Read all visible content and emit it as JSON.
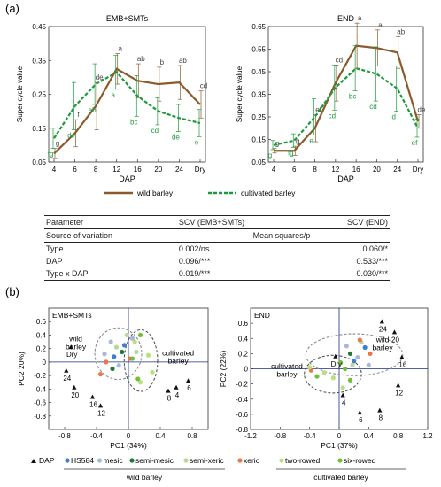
{
  "panel_a": {
    "label": "(a)"
  },
  "panel_b": {
    "label": "(b)"
  },
  "chart_data": [
    {
      "type": "line",
      "title": "EMB+SMTs",
      "xlabel": "DAP",
      "ylabel": "Super cycle value",
      "categories": [
        "4",
        "6",
        "8",
        "12",
        "16",
        "20",
        "24",
        "Dry"
      ],
      "yticks": [
        "0.05",
        "0.15",
        "0.25",
        "0.35",
        "0.45"
      ],
      "ylim": [
        0.05,
        0.45
      ],
      "series": [
        {
          "name": "wild barley",
          "color": "#8b5a2b",
          "values": [
            0.075,
            0.135,
            0.215,
            0.325,
            0.29,
            0.28,
            0.285,
            0.22
          ],
          "errors": [
            0.015,
            0.04,
            0.07,
            0.045,
            0.05,
            0.05,
            0.05,
            0.04
          ],
          "letters": [
            "g",
            "f",
            "de",
            "a",
            "ab",
            "b",
            "ab",
            "cd"
          ]
        },
        {
          "name": "cultivated barley",
          "color": "#1e9a3c",
          "values": [
            0.12,
            0.215,
            0.28,
            0.315,
            0.245,
            0.2,
            0.18,
            0.165
          ],
          "errors": [
            0.03,
            0.07,
            0.06,
            0.05,
            0.06,
            0.04,
            0.04,
            0.04
          ],
          "letters": [
            "fg",
            "de",
            "ab",
            "a",
            "bc",
            "cd",
            "de",
            "e"
          ]
        }
      ],
      "legend": "bottom"
    },
    {
      "type": "line",
      "title": "END",
      "xlabel": "DAP",
      "ylabel": "Super cycle value",
      "categories": [
        "4",
        "6",
        "8",
        "12",
        "16",
        "20",
        "24",
        "Dry"
      ],
      "yticks": [
        "0.05",
        "0.15",
        "0.25",
        "0.35",
        "0.45",
        "0.55",
        "0.65"
      ],
      "ylim": [
        0.05,
        0.65
      ],
      "series": [
        {
          "name": "wild barley",
          "color": "#8b5a2b",
          "values": [
            0.1,
            0.1,
            0.2,
            0.4,
            0.565,
            0.555,
            0.535,
            0.23
          ],
          "errors": [
            0.01,
            0.02,
            0.06,
            0.08,
            0.1,
            0.08,
            0.07,
            0.03
          ],
          "letters": [
            "g",
            "g",
            "ef",
            "cd",
            "a",
            "a",
            "ab",
            "de"
          ]
        },
        {
          "name": "cultivated barley",
          "color": "#1e9a3c",
          "values": [
            0.125,
            0.145,
            0.25,
            0.38,
            0.465,
            0.44,
            0.375,
            0.2
          ],
          "errors": [
            0.02,
            0.03,
            0.08,
            0.1,
            0.1,
            0.12,
            0.1,
            0.04
          ],
          "letters": [
            "g",
            "fg",
            "e",
            "cd",
            "bc",
            "cd",
            "d",
            "ef"
          ]
        }
      ],
      "legend": "bottom"
    },
    {
      "type": "scatter",
      "title": "EMB+SMTs",
      "xlabel": "PC1 (34%)",
      "ylabel": "PC2 20%)",
      "xticks": [
        "-0.8",
        "-0.4",
        "0",
        "0.4",
        "0.8"
      ],
      "yticks": [
        "0.6",
        "0.4",
        "0.2",
        "0",
        "-0.2",
        "-0.4",
        "-0.6",
        "-0.8"
      ],
      "xlim": [
        -1.0,
        1.0
      ],
      "ylim": [
        -1.0,
        0.8
      ],
      "annotations": [
        "wild barley",
        "cultivated barley"
      ],
      "dap_points": [
        {
          "label": "Dry",
          "x": -0.72,
          "y": 0.22
        },
        {
          "label": "24",
          "x": -0.78,
          "y": -0.13
        },
        {
          "label": "20",
          "x": -0.68,
          "y": -0.38
        },
        {
          "label": "16",
          "x": -0.45,
          "y": -0.52
        },
        {
          "label": "12",
          "x": -0.35,
          "y": -0.65
        },
        {
          "label": "8",
          "x": 0.5,
          "y": -0.43
        },
        {
          "label": "4",
          "x": 0.6,
          "y": -0.38
        },
        {
          "label": "6",
          "x": 0.75,
          "y": -0.28
        }
      ],
      "sample_points": [
        {
          "group": "HS584",
          "x": -0.18,
          "y": 0.08
        },
        {
          "group": "HS584",
          "x": -0.05,
          "y": 0.25
        },
        {
          "group": "mesic",
          "x": -0.3,
          "y": 0.12
        },
        {
          "group": "mesic",
          "x": -0.22,
          "y": 0.3
        },
        {
          "group": "mesic",
          "x": 0.05,
          "y": 0.35
        },
        {
          "group": "mesic",
          "x": -0.12,
          "y": -0.05
        },
        {
          "group": "semi-mesic",
          "x": -0.08,
          "y": 0.15
        },
        {
          "group": "semi-mesic",
          "x": -0.2,
          "y": -0.1
        },
        {
          "group": "semi-xeric",
          "x": -0.02,
          "y": 0.4
        },
        {
          "group": "semi-xeric",
          "x": 0.1,
          "y": 0.15
        },
        {
          "group": "semi-xeric",
          "x": -0.15,
          "y": 0.22
        },
        {
          "group": "xeric",
          "x": -0.35,
          "y": -0.18
        },
        {
          "group": "xeric",
          "x": 0.02,
          "y": 0.05
        },
        {
          "group": "xeric",
          "x": -0.28,
          "y": 0.0
        },
        {
          "group": "two-rowed",
          "x": 0.08,
          "y": 0.3
        },
        {
          "group": "two-rowed",
          "x": 0.25,
          "y": 0.1
        },
        {
          "group": "two-rowed",
          "x": 0.3,
          "y": -0.15
        },
        {
          "group": "two-rowed",
          "x": 0.15,
          "y": -0.3
        },
        {
          "group": "six-rowed",
          "x": 0.15,
          "y": 0.4
        },
        {
          "group": "six-rowed",
          "x": 0.05,
          "y": 0.05
        },
        {
          "group": "six-rowed",
          "x": 0.12,
          "y": -0.25
        }
      ]
    },
    {
      "type": "scatter",
      "title": "END",
      "xlabel": "PC1 (37%)",
      "ylabel": "PC2 (22%)",
      "xticks": [
        "-1.2",
        "-0.8",
        "-0.4",
        "0",
        "0.4",
        "0.8",
        "1.2"
      ],
      "yticks": [
        "0.6",
        "0.4",
        "0.2",
        "0",
        "-0.2",
        "-0.4",
        "-0.6",
        "-0.8"
      ],
      "xlim": [
        -1.2,
        1.2
      ],
      "ylim": [
        -0.8,
        0.8
      ],
      "annotations": [
        "wild barley",
        "cultivated barley"
      ],
      "dap_points": [
        {
          "label": "Dry",
          "x": -0.05,
          "y": 0.16
        },
        {
          "label": "24",
          "x": 0.58,
          "y": 0.62
        },
        {
          "label": "20",
          "x": 0.75,
          "y": 0.48
        },
        {
          "label": "16",
          "x": 0.85,
          "y": 0.15
        },
        {
          "label": "12",
          "x": 0.8,
          "y": -0.22
        },
        {
          "label": "8",
          "x": 0.55,
          "y": -0.55
        },
        {
          "label": "6",
          "x": 0.28,
          "y": -0.58
        },
        {
          "label": "4",
          "x": 0.05,
          "y": -0.35
        }
      ],
      "sample_points": [
        {
          "group": "HS584",
          "x": 0.2,
          "y": 0.1
        },
        {
          "group": "HS584",
          "x": 0.35,
          "y": 0.28
        },
        {
          "group": "mesic",
          "x": 0.1,
          "y": 0.3
        },
        {
          "group": "mesic",
          "x": 0.4,
          "y": 0.05
        },
        {
          "group": "mesic",
          "x": 0.25,
          "y": 0.15
        },
        {
          "group": "semi-mesic",
          "x": 0.15,
          "y": 0.2
        },
        {
          "group": "semi-xeric",
          "x": 0.3,
          "y": 0.35
        },
        {
          "group": "semi-xeric",
          "x": 0.18,
          "y": 0.05
        },
        {
          "group": "xeric",
          "x": 0.28,
          "y": 0.38
        },
        {
          "group": "xeric",
          "x": 0.42,
          "y": 0.2
        },
        {
          "group": "xeric",
          "x": -0.38,
          "y": -0.02
        },
        {
          "group": "two-rowed",
          "x": -0.2,
          "y": -0.05
        },
        {
          "group": "two-rowed",
          "x": -0.08,
          "y": -0.12
        },
        {
          "group": "two-rowed",
          "x": 0.05,
          "y": -0.25
        },
        {
          "group": "two-rowed",
          "x": -0.4,
          "y": 0.02
        },
        {
          "group": "six-rowed",
          "x": 0.15,
          "y": -0.15
        },
        {
          "group": "six-rowed",
          "x": 0.08,
          "y": 0.0
        },
        {
          "group": "six-rowed",
          "x": -0.3,
          "y": -0.1
        },
        {
          "group": "six-rowed",
          "x": 0.02,
          "y": 0.08
        }
      ]
    }
  ],
  "legend_a": {
    "wild": "wild barley",
    "cultivated": "cultivated barley"
  },
  "legend_b": {
    "dap": "DAP",
    "groups": [
      {
        "name": "HS584",
        "color": "#3a7fd5"
      },
      {
        "name": "mesic",
        "color": "#a8b8d8"
      },
      {
        "name": "semi-mesic",
        "color": "#1c7a3a"
      },
      {
        "name": "semi-xeric",
        "color": "#b8d89a"
      },
      {
        "name": "xeric",
        "color": "#e8774a"
      },
      {
        "name": "two-rowed",
        "color": "#b9e07a"
      },
      {
        "name": "six-rowed",
        "color": "#6fbf3a"
      }
    ],
    "wild_group": "wild barley",
    "cultivated_group": "cultivated barley"
  },
  "table": {
    "header": [
      "Parameter",
      "SCV (EMB+SMTs)",
      "SCV (END)"
    ],
    "subheader": [
      "Source of variation",
      "Mean squares/p"
    ],
    "rows": [
      [
        "Type",
        "0.002/ns",
        "0.060/*"
      ],
      [
        "DAP",
        "0.096/***",
        "0.533/***"
      ],
      [
        "Type x DAP",
        "0.019/***",
        "0.030/***"
      ]
    ]
  }
}
